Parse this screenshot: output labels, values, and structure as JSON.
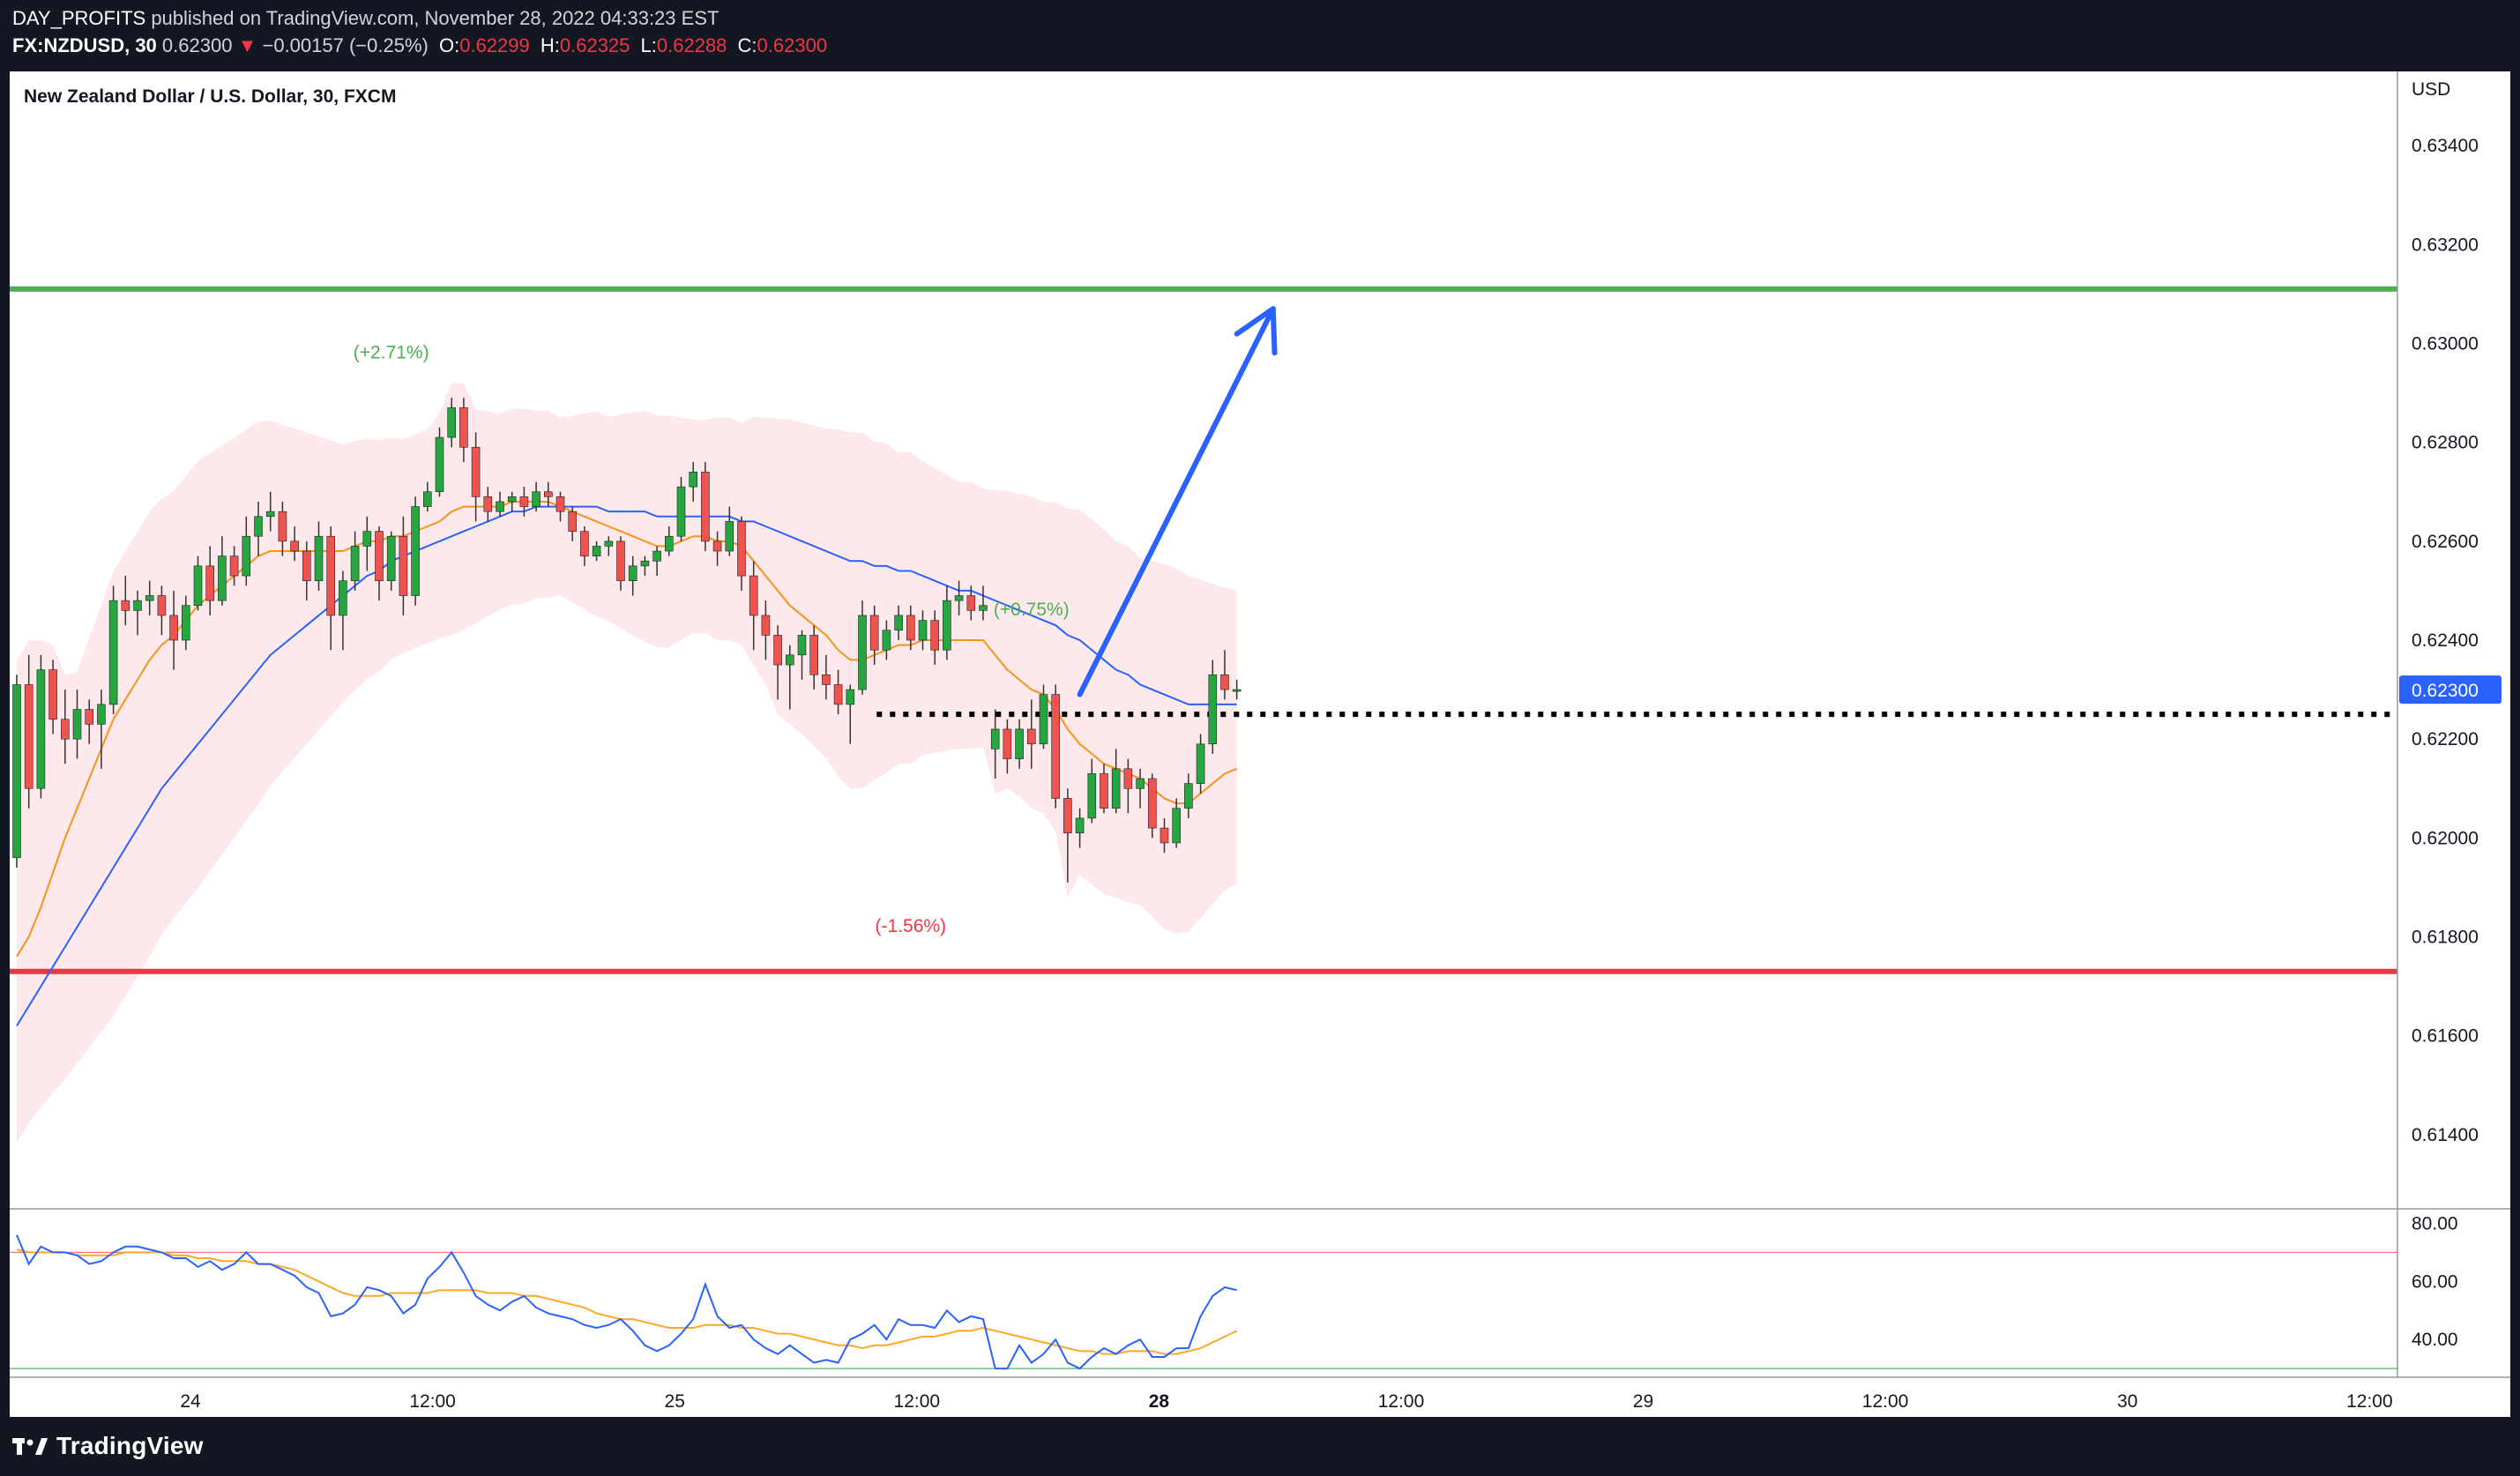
{
  "header": {
    "author": "DAY_PROFITS",
    "published_text": "published on TradingView.com, November 28, 2022 04:33:23 EST",
    "symbol": "FX:NZDUSD, 30",
    "last": "0.62300",
    "change_arrow": "▼",
    "change": "−0.00157 (−0.25%)",
    "o_label": "O:",
    "o_value": "0.62299",
    "h_label": "H:",
    "h_value": "0.62325",
    "l_label": "L:",
    "l_value": "0.62288",
    "c_label": "C:",
    "c_value": "0.62300"
  },
  "footer": {
    "brand": "TradingView",
    "logo_icon": "tradingview-logo-icon"
  },
  "chart_data": {
    "type": "candlestick",
    "title": "New Zealand Dollar / U.S. Dollar, 30, FXCM",
    "currency_label": "USD",
    "y_range": [
      0.6125,
      0.6355
    ],
    "y_ticks": [
      "0.63400",
      "0.63200",
      "0.63000",
      "0.62800",
      "0.62600",
      "0.62400",
      "0.62200",
      "0.62000",
      "0.61800",
      "0.61600",
      "0.61400"
    ],
    "x_ticks": [
      {
        "label": "24",
        "bold": false
      },
      {
        "label": "12:00",
        "bold": false
      },
      {
        "label": "25",
        "bold": false
      },
      {
        "label": "12:00",
        "bold": false
      },
      {
        "label": "28",
        "bold": true
      },
      {
        "label": "12:00",
        "bold": false
      },
      {
        "label": "29",
        "bold": false
      },
      {
        "label": "12:00",
        "bold": false
      },
      {
        "label": "30",
        "bold": false
      },
      {
        "label": "12:00",
        "bold": false
      }
    ],
    "last_price": 0.623,
    "last_price_label": "0.62300",
    "resistance_level": 0.6311,
    "support_level": 0.6173,
    "dotted_level": 0.6225,
    "annotations": [
      {
        "text": "(+2.71%)",
        "price": 0.6297,
        "bar": 31,
        "color": "#4caf50"
      },
      {
        "text": "(+0.75%)",
        "price": 0.6245,
        "bar": 84,
        "color": "#4caf50"
      },
      {
        "text": "(-1.56%)",
        "price": 0.6181,
        "bar": 74,
        "color": "#f23645"
      }
    ],
    "arrow": {
      "from_bar": 88,
      "from_price": 6229,
      "to_bar": 104,
      "to_price": 6307,
      "color": "#2962ff"
    },
    "colors": {
      "up": "#26a641",
      "down": "#ef5350",
      "ema_fast": "#f7931a",
      "ema_slow": "#2962ff",
      "band": "#fde7ea",
      "resistance": "#4caf50",
      "support": "#e53945",
      "rsi": "#2962ff",
      "rsi_ma": "#ffa726"
    },
    "candles_x10000": [
      [
        6196,
        6233,
        6194,
        6231
      ],
      [
        6231,
        6237,
        6206,
        6210
      ],
      [
        6210,
        6237,
        6208,
        6234
      ],
      [
        6234,
        6236,
        6221,
        6224
      ],
      [
        6224,
        6230,
        6215,
        6220
      ],
      [
        6220,
        6230,
        6216,
        6226
      ],
      [
        6226,
        6228,
        6219,
        6223
      ],
      [
        6223,
        6230,
        6214,
        6227
      ],
      [
        6227,
        6251,
        6225,
        6248
      ],
      [
        6248,
        6253,
        6243,
        6246
      ],
      [
        6246,
        6250,
        6241,
        6248
      ],
      [
        6248,
        6252,
        6245,
        6249
      ],
      [
        6249,
        6251,
        6241,
        6245
      ],
      [
        6245,
        6250,
        6234,
        6240
      ],
      [
        6240,
        6249,
        6238,
        6247
      ],
      [
        6247,
        6257,
        6246,
        6255
      ],
      [
        6255,
        6259,
        6245,
        6248
      ],
      [
        6248,
        6261,
        6247,
        6257
      ],
      [
        6257,
        6259,
        6251,
        6253
      ],
      [
        6253,
        6265,
        6251,
        6261
      ],
      [
        6261,
        6268,
        6257,
        6265
      ],
      [
        6265,
        6270,
        6262,
        6266
      ],
      [
        6266,
        6268,
        6257,
        6260
      ],
      [
        6260,
        6263,
        6256,
        6258
      ],
      [
        6258,
        6260,
        6248,
        6252
      ],
      [
        6252,
        6264,
        6250,
        6261
      ],
      [
        6261,
        6263,
        6238,
        6245
      ],
      [
        6245,
        6254,
        6238,
        6252
      ],
      [
        6252,
        6262,
        6250,
        6259
      ],
      [
        6259,
        6265,
        6254,
        6262
      ],
      [
        6262,
        6263,
        6248,
        6252
      ],
      [
        6252,
        6262,
        6250,
        6261
      ],
      [
        6261,
        6265,
        6245,
        6249
      ],
      [
        6249,
        6269,
        6247,
        6267
      ],
      [
        6267,
        6272,
        6266,
        6270
      ],
      [
        6270,
        6283,
        6269,
        6281
      ],
      [
        6281,
        6289,
        6279,
        6287
      ],
      [
        6287,
        6289,
        6276,
        6279
      ],
      [
        6279,
        6282,
        6264,
        6269
      ],
      [
        6269,
        6271,
        6264,
        6266
      ],
      [
        6266,
        6270,
        6265,
        6268
      ],
      [
        6268,
        6270,
        6266,
        6269
      ],
      [
        6269,
        6271,
        6265,
        6267
      ],
      [
        6267,
        6272,
        6266,
        6270
      ],
      [
        6270,
        6272,
        6267,
        6269
      ],
      [
        6269,
        6270,
        6264,
        6266
      ],
      [
        6266,
        6267,
        6260,
        6262
      ],
      [
        6262,
        6263,
        6255,
        6257
      ],
      [
        6257,
        6260,
        6256,
        6259
      ],
      [
        6259,
        6261,
        6257,
        6260
      ],
      [
        6260,
        6261,
        6250,
        6252
      ],
      [
        6252,
        6257,
        6249,
        6255
      ],
      [
        6255,
        6257,
        6253,
        6256
      ],
      [
        6256,
        6259,
        6253,
        6258
      ],
      [
        6258,
        6263,
        6257,
        6261
      ],
      [
        6261,
        6273,
        6260,
        6271
      ],
      [
        6271,
        6276,
        6268,
        6274
      ],
      [
        6274,
        6276,
        6258,
        6260
      ],
      [
        6260,
        6262,
        6255,
        6258
      ],
      [
        6258,
        6267,
        6257,
        6264
      ],
      [
        6264,
        6265,
        6250,
        6253
      ],
      [
        6253,
        6256,
        6238,
        6245
      ],
      [
        6245,
        6248,
        6236,
        6241
      ],
      [
        6241,
        6243,
        6228,
        6235
      ],
      [
        6235,
        6239,
        6226,
        6237
      ],
      [
        6237,
        6242,
        6232,
        6241
      ],
      [
        6241,
        6243,
        6230,
        6233
      ],
      [
        6233,
        6237,
        6228,
        6231
      ],
      [
        6231,
        6234,
        6225,
        6227
      ],
      [
        6227,
        6231,
        6219,
        6230
      ],
      [
        6230,
        6248,
        6229,
        6245
      ],
      [
        6245,
        6247,
        6235,
        6238
      ],
      [
        6238,
        6244,
        6236,
        6242
      ],
      [
        6242,
        6247,
        6240,
        6245
      ],
      [
        6245,
        6247,
        6238,
        6240
      ],
      [
        6240,
        6246,
        6238,
        6244
      ],
      [
        6244,
        6246,
        6235,
        6238
      ],
      [
        6238,
        6251,
        6236,
        6248
      ],
      [
        6248,
        6252,
        6245,
        6249
      ],
      [
        6249,
        6251,
        6244,
        6246
      ],
      [
        6246,
        6251,
        6244,
        6247
      ],
      [
        6218,
        6226,
        6212,
        6222
      ],
      [
        6222,
        6224,
        6213,
        6216
      ],
      [
        6216,
        6224,
        6214,
        6222
      ],
      [
        6222,
        6228,
        6214,
        6219
      ],
      [
        6219,
        6231,
        6218,
        6229
      ],
      [
        6229,
        6231,
        6206,
        6208
      ],
      [
        6208,
        6210,
        6191,
        6201
      ],
      [
        6201,
        6206,
        6198,
        6204
      ],
      [
        6204,
        6216,
        6203,
        6213
      ],
      [
        6213,
        6215,
        6205,
        6206
      ],
      [
        6206,
        6218,
        6205,
        6214
      ],
      [
        6214,
        6216,
        6205,
        6210
      ],
      [
        6210,
        6214,
        6206,
        6212
      ],
      [
        6212,
        6213,
        6200,
        6202
      ],
      [
        6202,
        6204,
        6197,
        6199
      ],
      [
        6199,
        6208,
        6198,
        6206
      ],
      [
        6206,
        6213,
        6204,
        6211
      ],
      [
        6211,
        6221,
        6209,
        6219
      ],
      [
        6219,
        6236,
        6217,
        6233
      ],
      [
        6233,
        6238,
        6228,
        6230
      ],
      [
        6230,
        6232,
        6228,
        6230
      ]
    ],
    "ema_fast_x10000": [
      6176,
      6180,
      6186,
      6193,
      6200,
      6206,
      6212,
      6218,
      6224,
      6228,
      6232,
      6236,
      6239,
      6241,
      6244,
      6247,
      6249,
      6251,
      6253,
      6255,
      6257,
      6258,
      6258,
      6258,
      6258,
      6258,
      6258,
      6258,
      6259,
      6260,
      6260,
      6261,
      6261,
      6262,
      6263,
      6264,
      6266,
      6267,
      6267,
      6267,
      6267,
      6268,
      6268,
      6268,
      6268,
      6267,
      6266,
      6265,
      6264,
      6263,
      6262,
      6261,
      6260,
      6259,
      6259,
      6260,
      6261,
      6261,
      6260,
      6260,
      6259,
      6256,
      6253,
      6250,
      6247,
      6245,
      6243,
      6241,
      6238,
      6236,
      6236,
      6237,
      6238,
      6239,
      6239,
      6240,
      6240,
      6240,
      6240,
      6240,
      6240,
      6237,
      6234,
      6232,
      6230,
      6229,
      6226,
      6222,
      6219,
      6217,
      6215,
      6214,
      6213,
      6212,
      6210,
      6208,
      6207,
      6207,
      6209,
      6211,
      6213,
      6214
    ],
    "ema_slow_x10000": [
      6162,
      6166,
      6170,
      6174,
      6178,
      6182,
      6186,
      6190,
      6194,
      6198,
      6202,
      6206,
      6210,
      6213,
      6216,
      6219,
      6222,
      6225,
      6228,
      6231,
      6234,
      6237,
      6239,
      6241,
      6243,
      6245,
      6247,
      6249,
      6251,
      6253,
      6254,
      6256,
      6257,
      6258,
      6259,
      6260,
      6261,
      6262,
      6263,
      6264,
      6265,
      6266,
      6266,
      6267,
      6267,
      6267,
      6267,
      6267,
      6267,
      6266,
      6266,
      6266,
      6266,
      6265,
      6265,
      6265,
      6265,
      6265,
      6265,
      6265,
      6264,
      6264,
      6263,
      6262,
      6261,
      6260,
      6259,
      6258,
      6257,
      6256,
      6256,
      6255,
      6255,
      6254,
      6254,
      6253,
      6252,
      6251,
      6250,
      6250,
      6249,
      6248,
      6247,
      6246,
      6245,
      6244,
      6243,
      6241,
      6240,
      6238,
      6236,
      6234,
      6233,
      6231,
      6230,
      6229,
      6228,
      6227,
      6227,
      6227,
      6227,
      6227
    ],
    "rsi": {
      "y_range": [
        27,
        85
      ],
      "y_ticks": [
        "80.00",
        "60.00",
        "40.00"
      ],
      "overbought": 70,
      "oversold": 30,
      "values": [
        76,
        66,
        72,
        70,
        70,
        69,
        66,
        67,
        70,
        72,
        72,
        71,
        70,
        68,
        68,
        65,
        67,
        64,
        66,
        70,
        66,
        66,
        64,
        62,
        58,
        56,
        48,
        49,
        52,
        58,
        57,
        55,
        49,
        52,
        61,
        65,
        70,
        63,
        55,
        52,
        50,
        53,
        55,
        51,
        49,
        48,
        47,
        45,
        44,
        45,
        47,
        43,
        38,
        36,
        38,
        42,
        47,
        59,
        48,
        44,
        45,
        40,
        37,
        35,
        38,
        35,
        32,
        33,
        32,
        40,
        42,
        45,
        40,
        47,
        45,
        45,
        44,
        50,
        46,
        48,
        47,
        30,
        30,
        38,
        32,
        35,
        40,
        32,
        30,
        34,
        37,
        35,
        38,
        40,
        34,
        34,
        37,
        37,
        48,
        55,
        58,
        57
      ],
      "ma_values": [
        71,
        70,
        70,
        70,
        70,
        69,
        69,
        69,
        69,
        70,
        70,
        70,
        70,
        69,
        69,
        68,
        68,
        67,
        67,
        67,
        66,
        66,
        65,
        64,
        62,
        60,
        58,
        56,
        55,
        55,
        55,
        56,
        56,
        56,
        56,
        57,
        57,
        57,
        57,
        56,
        56,
        56,
        55,
        55,
        54,
        53,
        52,
        51,
        49,
        48,
        47,
        47,
        46,
        45,
        44,
        44,
        44,
        45,
        45,
        45,
        44,
        44,
        43,
        42,
        42,
        41,
        40,
        39,
        38,
        38,
        37,
        38,
        38,
        39,
        40,
        41,
        41,
        42,
        43,
        43,
        44,
        43,
        42,
        41,
        40,
        39,
        38,
        37,
        36,
        36,
        35,
        35,
        36,
        36,
        36,
        35,
        35,
        36,
        37,
        39,
        41,
        43
      ]
    }
  }
}
